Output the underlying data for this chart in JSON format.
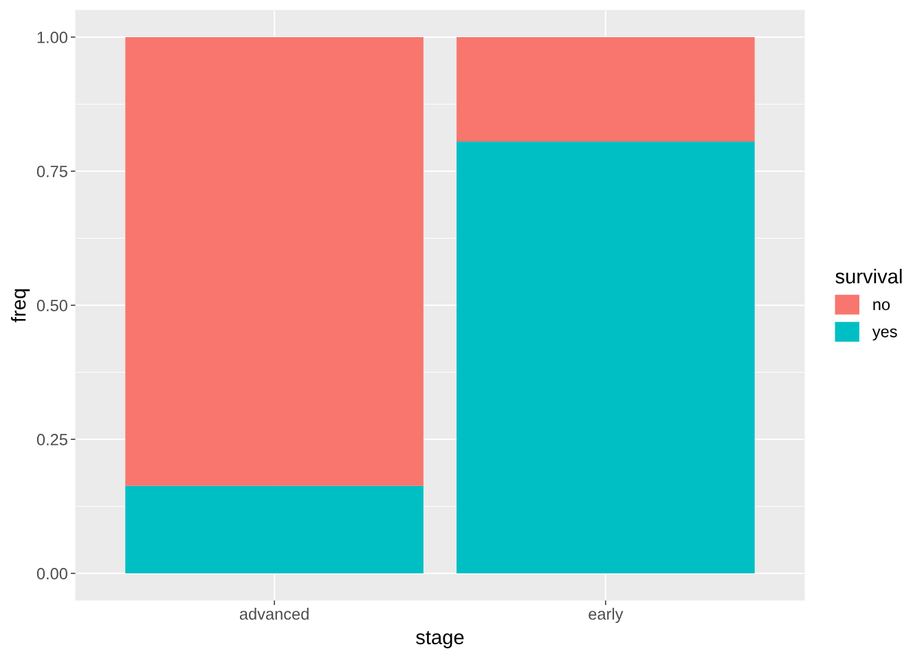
{
  "chart_data": {
    "type": "bar",
    "stacked": true,
    "xlabel": "stage",
    "ylabel": "freq",
    "legend_title": "survival",
    "legend": "right",
    "grid": true,
    "categories": [
      "advanced",
      "early"
    ],
    "series": [
      {
        "name": "yes",
        "color": "#00BFC4",
        "values": [
          0.163,
          0.805
        ]
      },
      {
        "name": "no",
        "color": "#F8766D",
        "values": [
          0.837,
          0.195
        ]
      }
    ],
    "ylim": [
      -0.05,
      1.05
    ],
    "yticks": [
      {
        "value": 0,
        "label": "0.00"
      },
      {
        "value": 0.25,
        "label": "0.25"
      },
      {
        "value": 0.5,
        "label": "0.50"
      },
      {
        "value": 0.75,
        "label": "0.75"
      },
      {
        "value": 1,
        "label": "1.00"
      }
    ]
  }
}
